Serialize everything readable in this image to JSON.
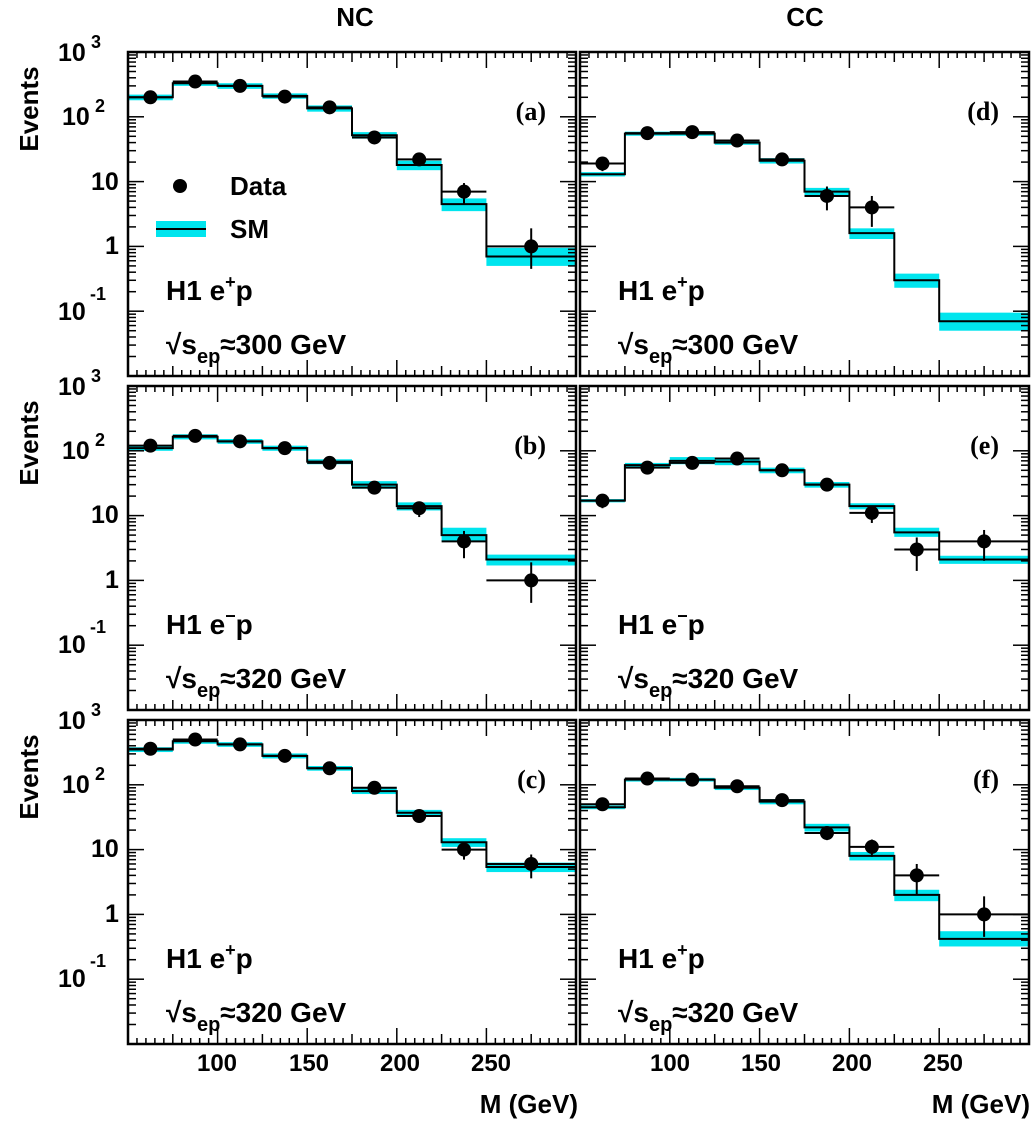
{
  "figure": {
    "column_titles": [
      "NC",
      "CC"
    ],
    "ylabel": "Events",
    "xlabel": "M (GeV)",
    "x_tick_labels": [
      "100",
      "150",
      "200",
      "250"
    ],
    "legend": {
      "data_label": "Data",
      "sm_label": "SM"
    },
    "colors": {
      "sm_band": "#00e5ee",
      "line": "#000000",
      "background": "#ffffff"
    }
  },
  "chart_data": [
    {
      "type": "step",
      "panel": "(a)",
      "title": "NC",
      "dataset": {
        "beam": "H1 e",
        "beam_sup": "+",
        "beam_tail": "p",
        "energy_prefix": "√s",
        "energy_sub": "ep",
        "energy_value": "≈300 GeV"
      },
      "xlim": [
        50,
        300
      ],
      "ylim": [
        0.01,
        1000
      ],
      "yscale": "log",
      "bin_edges": [
        50,
        75,
        100,
        125,
        150,
        175,
        200,
        225,
        250,
        300
      ],
      "sm": [
        200,
        330,
        300,
        210,
        135,
        52,
        18,
        4.5,
        0.7
      ],
      "sm_band_low": [
        180,
        300,
        270,
        190,
        120,
        46,
        15,
        3.5,
        0.5
      ],
      "sm_band_high": [
        220,
        360,
        330,
        230,
        150,
        58,
        21,
        5.5,
        0.95
      ],
      "data_x": [
        62.5,
        87.5,
        112.5,
        137.5,
        162.5,
        187.5,
        212.5,
        237.5,
        275
      ],
      "data_y": [
        200,
        350,
        300,
        205,
        140,
        48,
        22,
        7,
        1
      ],
      "data_err_low": [
        186,
        332,
        283,
        191,
        128,
        41,
        17.5,
        4.5,
        0.45
      ],
      "data_err_high": [
        214,
        369,
        317,
        219,
        152,
        55,
        26.5,
        9.5,
        1.9
      ]
    },
    {
      "type": "step",
      "panel": "(b)",
      "dataset": {
        "beam": "H1 e",
        "beam_sup": "−",
        "beam_tail": "p",
        "energy_prefix": "√s",
        "energy_sub": "ep",
        "energy_value": "≈320 GeV"
      },
      "xlim": [
        50,
        300
      ],
      "ylim": [
        0.01,
        1000
      ],
      "yscale": "log",
      "bin_edges": [
        50,
        75,
        100,
        125,
        150,
        175,
        200,
        225,
        250,
        300
      ],
      "sm": [
        110,
        165,
        140,
        110,
        68,
        30,
        14,
        5,
        2.1
      ],
      "sm_band_low": [
        100,
        150,
        128,
        100,
        62,
        26,
        12,
        4,
        1.7
      ],
      "sm_band_high": [
        120,
        180,
        152,
        120,
        74,
        34,
        16,
        6.5,
        2.5
      ],
      "data_x": [
        62.5,
        87.5,
        112.5,
        137.5,
        162.5,
        187.5,
        212.5,
        237.5,
        275
      ],
      "data_y": [
        120,
        170,
        140,
        110,
        65,
        27,
        13,
        4,
        1
      ],
      "data_err_low": [
        109,
        157,
        128,
        100,
        57,
        22,
        9.5,
        2.2,
        0.45
      ],
      "data_err_high": [
        131,
        183,
        152,
        120,
        73,
        32,
        16.5,
        5.8,
        1.9
      ]
    },
    {
      "type": "step",
      "panel": "(c)",
      "dataset": {
        "beam": "H1 e",
        "beam_sup": "+",
        "beam_tail": "p",
        "energy_prefix": "√s",
        "energy_sub": "ep",
        "energy_value": "≈320 GeV"
      },
      "xlim": [
        50,
        300
      ],
      "ylim": [
        0.01,
        1000
      ],
      "yscale": "log",
      "bin_edges": [
        50,
        75,
        100,
        125,
        150,
        175,
        200,
        225,
        250,
        300
      ],
      "sm": [
        350,
        470,
        420,
        280,
        180,
        80,
        37,
        13,
        5.4
      ],
      "sm_band_low": [
        320,
        430,
        385,
        255,
        165,
        72,
        33,
        11,
        4.5
      ],
      "sm_band_high": [
        380,
        510,
        455,
        305,
        195,
        88,
        41,
        15,
        6.3
      ],
      "data_x": [
        62.5,
        87.5,
        112.5,
        137.5,
        162.5,
        187.5,
        212.5,
        237.5,
        275
      ],
      "data_y": [
        360,
        500,
        420,
        280,
        180,
        90,
        33,
        10,
        6
      ],
      "data_err_low": [
        341,
        478,
        400,
        263,
        167,
        81,
        27,
        7,
        3.6
      ],
      "data_err_high": [
        379,
        522,
        440,
        297,
        193,
        99,
        39,
        13,
        8.4
      ]
    },
    {
      "type": "step",
      "panel": "(d)",
      "title": "CC",
      "dataset": {
        "beam": "H1 e",
        "beam_sup": "+",
        "beam_tail": "p",
        "energy_prefix": "√s",
        "energy_sub": "ep",
        "energy_value": "≈300 GeV"
      },
      "xlim": [
        50,
        300
      ],
      "ylim": [
        0.01,
        1000
      ],
      "yscale": "log",
      "bin_edges": [
        50,
        75,
        100,
        125,
        150,
        175,
        200,
        225,
        250,
        300
      ],
      "sm": [
        13,
        55,
        55,
        40,
        21,
        7,
        1.6,
        0.3,
        0.07
      ],
      "sm_band_low": [
        12,
        51,
        51,
        37,
        19,
        6,
        1.3,
        0.23,
        0.05
      ],
      "sm_band_high": [
        14,
        59,
        59,
        43,
        23,
        8,
        1.9,
        0.38,
        0.095
      ],
      "data_x": [
        62.5,
        87.5,
        112.5,
        137.5,
        162.5,
        187.5,
        212.5
      ],
      "data_y": [
        19,
        56,
        58,
        43,
        22,
        6,
        4
      ],
      "data_err_low": [
        14.5,
        48.5,
        50.5,
        36.5,
        17.5,
        3.6,
        2
      ],
      "data_err_high": [
        23.5,
        63.5,
        65.5,
        49.5,
        26.5,
        8.4,
        6
      ]
    },
    {
      "type": "step",
      "panel": "(e)",
      "dataset": {
        "beam": "H1 e",
        "beam_sup": "−",
        "beam_tail": "p",
        "energy_prefix": "√s",
        "energy_sub": "ep",
        "energy_value": "≈320 GeV"
      },
      "xlim": [
        50,
        300
      ],
      "ylim": [
        0.01,
        1000
      ],
      "yscale": "log",
      "bin_edges": [
        50,
        75,
        100,
        125,
        150,
        175,
        200,
        225,
        250,
        300
      ],
      "sm": [
        17,
        60,
        70,
        68,
        50,
        30,
        14,
        5.5,
        2.1
      ],
      "sm_band_low": [
        16,
        55,
        62,
        60,
        45,
        27,
        12.5,
        4.7,
        1.8
      ],
      "sm_band_high": [
        18,
        65,
        80,
        76,
        55,
        33,
        15.5,
        6.5,
        2.4
      ],
      "data_x": [
        62.5,
        87.5,
        112.5,
        137.5,
        162.5,
        187.5,
        212.5,
        237.5,
        275
      ],
      "data_y": [
        17,
        55,
        65,
        76,
        50,
        30,
        11,
        3,
        4
      ],
      "data_err_low": [
        13,
        48,
        57,
        68,
        43,
        25,
        7.7,
        1.4,
        2
      ],
      "data_err_high": [
        21,
        62,
        73,
        84,
        57,
        35,
        14.3,
        4.6,
        6
      ]
    },
    {
      "type": "step",
      "panel": "(f)",
      "dataset": {
        "beam": "H1 e",
        "beam_sup": "+",
        "beam_tail": "p",
        "energy_prefix": "√s",
        "energy_sub": "ep",
        "energy_value": "≈320 GeV"
      },
      "xlim": [
        50,
        300
      ],
      "ylim": [
        0.01,
        1000
      ],
      "yscale": "log",
      "bin_edges": [
        50,
        75,
        100,
        125,
        150,
        175,
        200,
        225,
        250,
        300
      ],
      "sm": [
        45,
        120,
        120,
        90,
        55,
        22,
        8,
        2,
        0.42
      ],
      "sm_band_low": [
        42,
        112,
        112,
        83,
        50,
        19,
        6.8,
        1.6,
        0.32
      ],
      "sm_band_high": [
        48,
        128,
        128,
        97,
        60,
        25,
        9.2,
        2.4,
        0.55
      ],
      "data_x": [
        62.5,
        87.5,
        112.5,
        137.5,
        162.5,
        187.5,
        212.5,
        237.5,
        275
      ],
      "data_y": [
        50,
        125,
        120,
        95,
        58,
        18,
        11,
        4,
        1
      ],
      "data_err_low": [
        43,
        114,
        109,
        85,
        50,
        14,
        7.7,
        2,
        0.45
      ],
      "data_err_high": [
        57,
        136,
        131,
        105,
        66,
        22,
        14.3,
        6,
        1.9
      ]
    }
  ]
}
